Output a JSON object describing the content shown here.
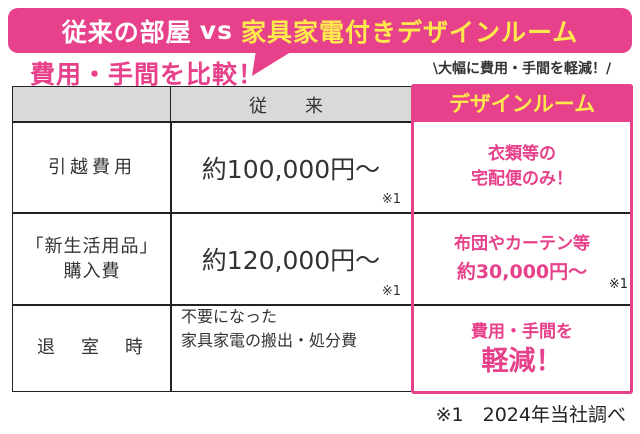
{
  "banner": {
    "left": "従来の部屋",
    "vs": "vs",
    "right": "家具家電付きデザインルーム"
  },
  "subtitle": "費用・手間を比較！",
  "callout": "\\大幅に費用・手間を軽減！/",
  "table": {
    "header_conventional": "従　来",
    "header_design": "デザインルーム",
    "rows": [
      {
        "label": "引越費用",
        "conventional": "約100,000円～",
        "conventional_note": "※1",
        "design_lines": [
          "衣類等の",
          "宅配便のみ！"
        ]
      },
      {
        "label": "「新生活用品」購入費",
        "label_lines": [
          "「新生活用品」",
          "購入費"
        ],
        "conventional": "約120,000円～",
        "conventional_note": "※1",
        "design_lines": [
          "布団やカーテン等",
          "約30,000円～"
        ],
        "design_note": "※1"
      },
      {
        "label": "退　室　時",
        "conventional_lines": [
          "不要になった",
          "家具家電の搬出・処分費"
        ],
        "design_lines": [
          "費用・手間を",
          "軽減！"
        ]
      }
    ]
  },
  "footnote": "※1　2024年当社調べ",
  "colors": {
    "accent": "#e6418a",
    "highlight": "#ffe94d",
    "header_gray": "#d9d9d9"
  }
}
